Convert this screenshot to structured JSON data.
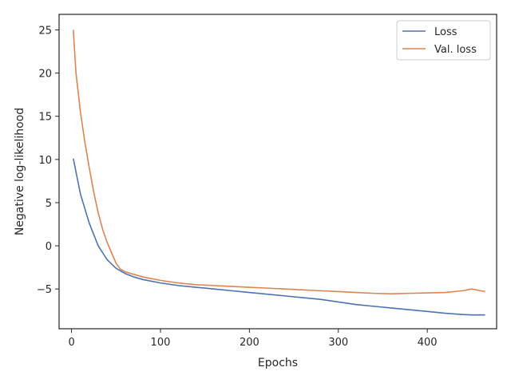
{
  "chart_data": {
    "type": "line",
    "title": "",
    "xlabel": "Epochs",
    "ylabel": "Negative log-likelihood",
    "xlim": [
      -14,
      478
    ],
    "ylim": [
      -9.6,
      26.8
    ],
    "xticks": [
      0,
      100,
      200,
      300,
      400
    ],
    "xtick_labels": [
      "0",
      "100",
      "200",
      "300",
      "400"
    ],
    "yticks": [
      -5,
      0,
      5,
      10,
      15,
      20,
      25
    ],
    "ytick_labels": [
      "−5",
      "0",
      "5",
      "10",
      "15",
      "20",
      "25"
    ],
    "grid": false,
    "legend_position": "top-right",
    "series": [
      {
        "name": "Loss",
        "color": "#4c72b0",
        "x": [
          2,
          10,
          20,
          30,
          40,
          50,
          60,
          70,
          80,
          100,
          120,
          140,
          160,
          180,
          200,
          220,
          240,
          260,
          280,
          300,
          320,
          340,
          360,
          380,
          400,
          420,
          440,
          450,
          460,
          465
        ],
        "y": [
          10.1,
          6.0,
          2.6,
          0.0,
          -1.6,
          -2.6,
          -3.2,
          -3.6,
          -3.9,
          -4.3,
          -4.6,
          -4.8,
          -5.0,
          -5.2,
          -5.4,
          -5.6,
          -5.8,
          -6.0,
          -6.2,
          -6.5,
          -6.8,
          -7.0,
          -7.2,
          -7.4,
          -7.6,
          -7.8,
          -7.95,
          -8.0,
          -8.0,
          -8.0
        ]
      },
      {
        "name": "Val. loss",
        "color": "#dd8452",
        "x": [
          2,
          5,
          10,
          15,
          20,
          25,
          30,
          35,
          40,
          45,
          50,
          55,
          60,
          70,
          80,
          100,
          120,
          140,
          160,
          180,
          200,
          220,
          240,
          260,
          280,
          300,
          320,
          340,
          360,
          380,
          400,
          420,
          440,
          450,
          460,
          465
        ],
        "y": [
          25.0,
          20.0,
          15.5,
          12.0,
          9.0,
          6.2,
          3.8,
          1.9,
          0.4,
          -0.8,
          -2.0,
          -2.7,
          -3.0,
          -3.3,
          -3.6,
          -4.0,
          -4.3,
          -4.5,
          -4.6,
          -4.7,
          -4.8,
          -4.9,
          -5.0,
          -5.1,
          -5.2,
          -5.3,
          -5.4,
          -5.5,
          -5.55,
          -5.5,
          -5.45,
          -5.4,
          -5.2,
          -5.0,
          -5.2,
          -5.3
        ]
      }
    ]
  }
}
